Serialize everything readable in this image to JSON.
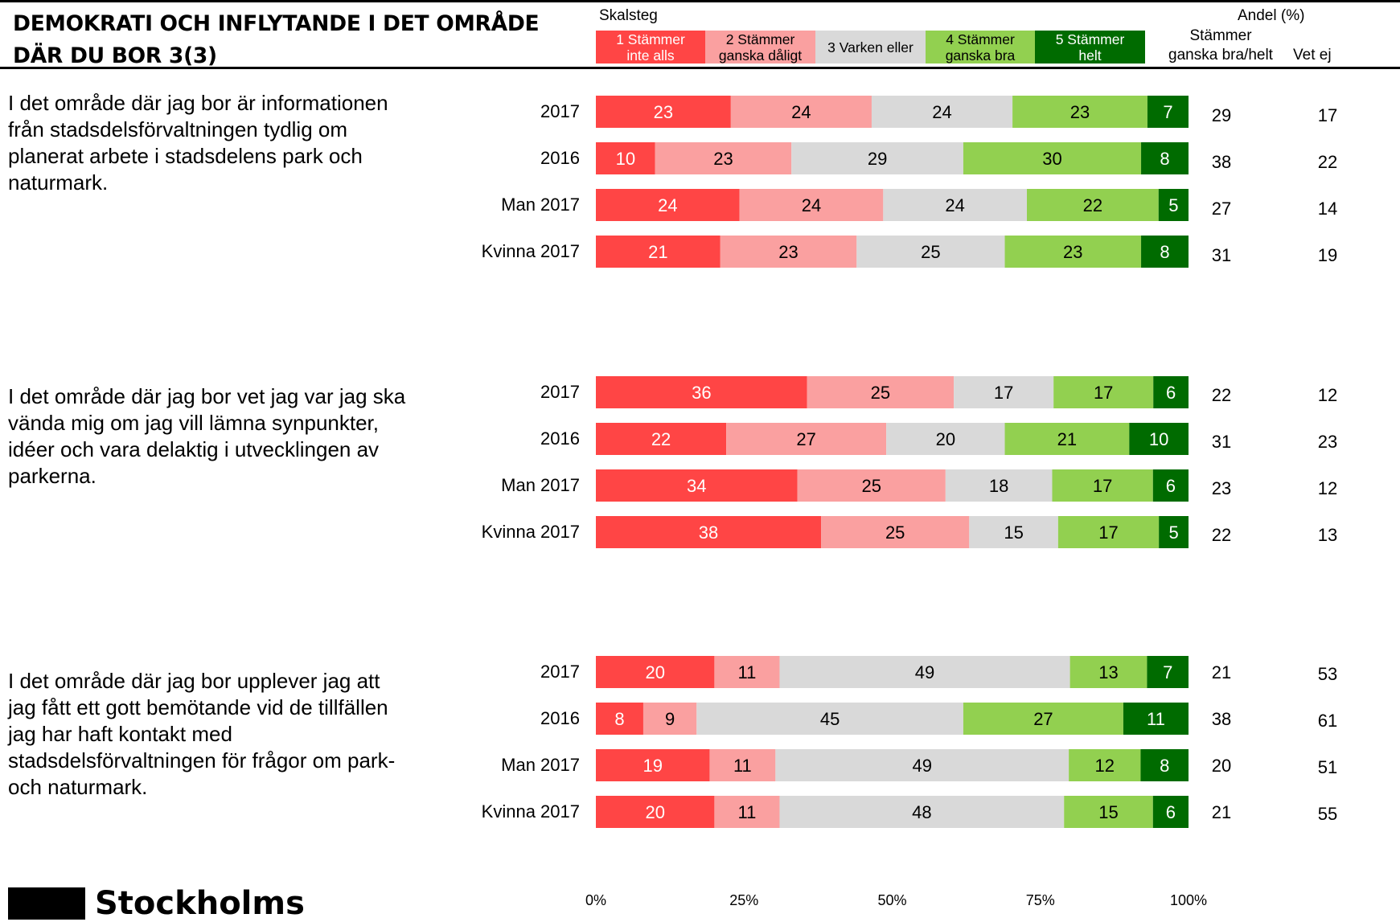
{
  "title_lines": [
    "DEMOKRATI OCH INFLYTANDE I DET OMRÅDE",
    "DÄR DU BOR 3(3)"
  ],
  "header": {
    "skalsteg": "Skalsteg",
    "andel": "Andel (%)",
    "stammer_line1": "Stämmer",
    "stammer_line2": "ganska bra/helt",
    "vet_ej": "Vet ej"
  },
  "legend": [
    {
      "line1": "1 Stämmer",
      "line2": "inte alls",
      "color": "#ff4545",
      "text_color": "#ffffff"
    },
    {
      "line1": "2 Stämmer",
      "line2": "ganska dåligt",
      "color": "#faa0a0",
      "text_color": "#000000"
    },
    {
      "line1": "3 Varken eller",
      "line2": "",
      "color": "#d9d9d9",
      "text_color": "#000000"
    },
    {
      "line1": "4 Stämmer",
      "line2": "ganska bra",
      "color": "#92d050",
      "text_color": "#000000"
    },
    {
      "line1": "5 Stämmer",
      "line2": "helt",
      "color": "#006b00",
      "text_color": "#ffffff"
    }
  ],
  "chart_data": {
    "type": "bar",
    "orientation": "horizontal-stacked",
    "xlim": [
      0,
      100
    ],
    "x_ticks": [
      "0%",
      "25%",
      "50%",
      "75%",
      "100%"
    ],
    "series_names": [
      "1 Stämmer inte alls",
      "2 Stämmer ganska dåligt",
      "3 Varken eller",
      "4 Stämmer ganska bra",
      "5 Stämmer helt"
    ],
    "groups": [
      {
        "question": "I det område där jag bor är informationen från stadsdelsförvaltningen tydlig om planerat arbete i stadsdelens park och naturmark.",
        "rows": [
          {
            "label": "2017",
            "values": [
              23,
              24,
              24,
              23,
              7
            ],
            "stammer": "29",
            "vet_ej": "17"
          },
          {
            "label": "2016",
            "values": [
              10,
              23,
              29,
              30,
              8
            ],
            "stammer": "38",
            "vet_ej": "22"
          },
          {
            "label": "Man 2017",
            "values": [
              24,
              24,
              24,
              22,
              5
            ],
            "stammer": "27",
            "vet_ej": "14"
          },
          {
            "label": "Kvinna 2017",
            "values": [
              21,
              23,
              25,
              23,
              8
            ],
            "stammer": "31",
            "vet_ej": "19"
          }
        ]
      },
      {
        "question": "I det område där jag bor vet jag var jag ska vända mig om jag vill lämna synpunkter, idéer och vara delaktig i utvecklingen av parkerna.",
        "rows": [
          {
            "label": "2017",
            "values": [
              36,
              25,
              17,
              17,
              6
            ],
            "stammer": "22",
            "vet_ej": "12"
          },
          {
            "label": "2016",
            "values": [
              22,
              27,
              20,
              21,
              10
            ],
            "stammer": "31",
            "vet_ej": "23"
          },
          {
            "label": "Man 2017",
            "values": [
              34,
              25,
              18,
              17,
              6
            ],
            "stammer": "23",
            "vet_ej": "12"
          },
          {
            "label": "Kvinna 2017",
            "values": [
              38,
              25,
              15,
              17,
              5
            ],
            "stammer": "22",
            "vet_ej": "13"
          }
        ]
      },
      {
        "question": "I det område där jag bor upplever jag att jag fått ett gott bemötande vid de tillfällen jag har haft kontakt med stadsdelsförvaltningen för frågor om park- och naturmark.",
        "rows": [
          {
            "label": "2017",
            "values": [
              20,
              11,
              49,
              13,
              7
            ],
            "stammer": "21",
            "vet_ej": "53"
          },
          {
            "label": "2016",
            "values": [
              8,
              9,
              45,
              27,
              11
            ],
            "stammer": "38",
            "vet_ej": "61"
          },
          {
            "label": "Man 2017",
            "values": [
              19,
              11,
              49,
              12,
              8
            ],
            "stammer": "20",
            "vet_ej": "51"
          },
          {
            "label": "Kvinna 2017",
            "values": [
              20,
              11,
              48,
              15,
              6
            ],
            "stammer": "21",
            "vet_ej": "55"
          }
        ]
      }
    ]
  },
  "logo_text": "Stockholms"
}
